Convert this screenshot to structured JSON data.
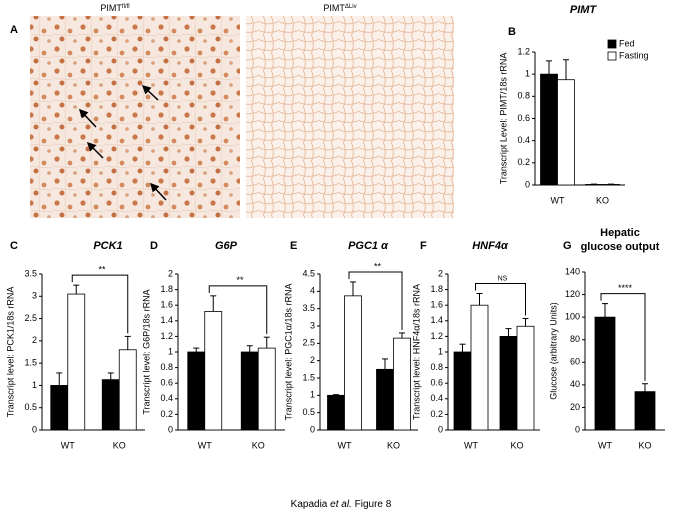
{
  "panel_a": {
    "letter": "A",
    "images": [
      {
        "label": "PIMT",
        "superscript": "fl/fl"
      },
      {
        "label": "PIMT",
        "superscript": "ΔLiv"
      }
    ]
  },
  "chart_data": [
    {
      "type": "bar",
      "panel": "B",
      "title": "PIMT",
      "y_label": "Transcript Level: PIMT/18s rRNA",
      "categories": [
        "WT",
        "KO"
      ],
      "series": [
        {
          "name": "Fed",
          "color": "#000000",
          "values": [
            1,
            0.005
          ],
          "errors": [
            0.12,
            0.003
          ]
        },
        {
          "name": "Fasting",
          "color": "#ffffff",
          "values": [
            0.95,
            0.005
          ],
          "errors": [
            0.18,
            0.003
          ]
        }
      ],
      "ylim": [
        0,
        1.2
      ],
      "yticks": [
        0,
        0.2,
        0.4,
        0.6,
        0.8,
        1,
        1.2
      ],
      "legend": "upper right"
    },
    {
      "type": "bar",
      "panel": "C",
      "title": "PCK1",
      "y_label": "Transcript level: PCK1/18s rRNA",
      "categories": [
        "WT",
        "KO"
      ],
      "series": [
        {
          "color": "#000000",
          "values": [
            1,
            1.13
          ],
          "errors": [
            0.28,
            0.15
          ]
        },
        {
          "color": "#ffffff",
          "values": [
            3.05,
            1.8
          ],
          "errors": [
            0.2,
            0.3
          ]
        }
      ],
      "ylim": [
        0,
        3.5
      ],
      "yticks": [
        0,
        0.5,
        1,
        1.5,
        2,
        2.5,
        3,
        3.5
      ],
      "significance": "**"
    },
    {
      "type": "bar",
      "panel": "D",
      "title": "G6P",
      "y_label": "Transcript level: G6P/18s rRNA",
      "categories": [
        "WT",
        "KO"
      ],
      "series": [
        {
          "color": "#000000",
          "values": [
            1,
            1
          ],
          "errors": [
            0.05,
            0.08
          ]
        },
        {
          "color": "#ffffff",
          "values": [
            1.52,
            1.05
          ],
          "errors": [
            0.2,
            0.14
          ]
        }
      ],
      "ylim": [
        0,
        2
      ],
      "yticks": [
        0,
        0.2,
        0.4,
        0.6,
        0.8,
        1,
        1.2,
        1.4,
        1.6,
        1.8,
        2
      ],
      "significance": "**"
    },
    {
      "type": "bar",
      "panel": "E",
      "title": "PGC1 α",
      "y_label": "Transcript level: PGC1α/18s rRNA",
      "categories": [
        "WT",
        "KO"
      ],
      "series": [
        {
          "color": "#000000",
          "values": [
            1,
            1.75
          ],
          "errors": [
            0.02,
            0.3
          ]
        },
        {
          "color": "#ffffff",
          "values": [
            3.87,
            2.65
          ],
          "errors": [
            0.4,
            0.15
          ]
        }
      ],
      "ylim": [
        0,
        4.5
      ],
      "yticks": [
        0,
        0.5,
        1,
        1.5,
        2,
        2.5,
        3,
        3.5,
        4,
        4.5
      ],
      "significance": "**"
    },
    {
      "type": "bar",
      "panel": "F",
      "title": "HNF4α",
      "y_label": "Transcript level: HNF4α/18s rRNA",
      "categories": [
        "WT",
        "KO"
      ],
      "series": [
        {
          "color": "#000000",
          "values": [
            1,
            1.2
          ],
          "errors": [
            0.1,
            0.1
          ]
        },
        {
          "color": "#ffffff",
          "values": [
            1.6,
            1.33
          ],
          "errors": [
            0.15,
            0.1
          ]
        }
      ],
      "ylim": [
        0,
        2
      ],
      "yticks": [
        0,
        0.2,
        0.4,
        0.6,
        0.8,
        1,
        1.2,
        1.4,
        1.6,
        1.8,
        2
      ],
      "significance": "NS"
    },
    {
      "type": "bar",
      "panel": "G",
      "title": "Hepatic glucose output",
      "y_label": "Glucose (arbitrary Units)",
      "categories": [
        "WT",
        "KO"
      ],
      "series": [
        {
          "color": "#000000",
          "values": [
            100,
            34
          ],
          "errors": [
            12,
            7
          ]
        }
      ],
      "ylim": [
        0,
        140
      ],
      "yticks": [
        0,
        20,
        40,
        60,
        80,
        100,
        120,
        140
      ],
      "significance": "****"
    }
  ],
  "caption": {
    "author": "Kapadia",
    "author_suffix": "et al.",
    "figure_label": "Figure  8"
  }
}
